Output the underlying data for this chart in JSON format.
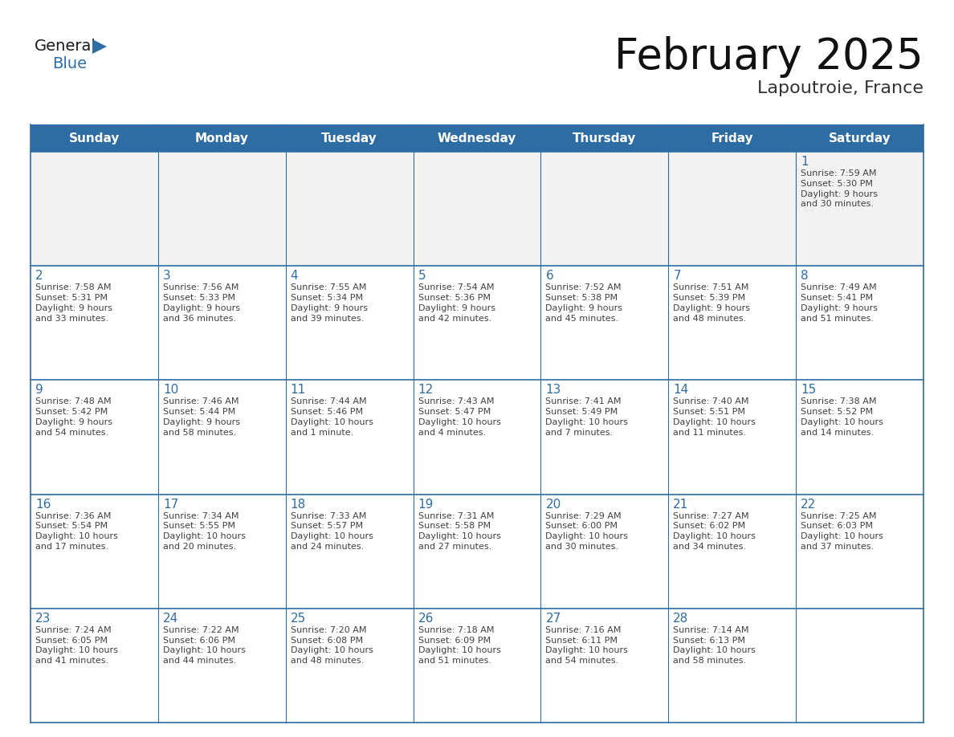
{
  "title": "February 2025",
  "subtitle": "Lapoutroie, France",
  "header_color": "#2e6da4",
  "header_text_color": "#ffffff",
  "cell_bg_color": "#ffffff",
  "cell_bg_light": "#f2f2f2",
  "cell_border_color": "#2e6da4",
  "day_number_color": "#2e6da4",
  "cell_text_color": "#404040",
  "days_of_week": [
    "Sunday",
    "Monday",
    "Tuesday",
    "Wednesday",
    "Thursday",
    "Friday",
    "Saturday"
  ],
  "weeks": [
    [
      {
        "day": null,
        "text": ""
      },
      {
        "day": null,
        "text": ""
      },
      {
        "day": null,
        "text": ""
      },
      {
        "day": null,
        "text": ""
      },
      {
        "day": null,
        "text": ""
      },
      {
        "day": null,
        "text": ""
      },
      {
        "day": 1,
        "text": "Sunrise: 7:59 AM\nSunset: 5:30 PM\nDaylight: 9 hours\nand 30 minutes."
      }
    ],
    [
      {
        "day": 2,
        "text": "Sunrise: 7:58 AM\nSunset: 5:31 PM\nDaylight: 9 hours\nand 33 minutes."
      },
      {
        "day": 3,
        "text": "Sunrise: 7:56 AM\nSunset: 5:33 PM\nDaylight: 9 hours\nand 36 minutes."
      },
      {
        "day": 4,
        "text": "Sunrise: 7:55 AM\nSunset: 5:34 PM\nDaylight: 9 hours\nand 39 minutes."
      },
      {
        "day": 5,
        "text": "Sunrise: 7:54 AM\nSunset: 5:36 PM\nDaylight: 9 hours\nand 42 minutes."
      },
      {
        "day": 6,
        "text": "Sunrise: 7:52 AM\nSunset: 5:38 PM\nDaylight: 9 hours\nand 45 minutes."
      },
      {
        "day": 7,
        "text": "Sunrise: 7:51 AM\nSunset: 5:39 PM\nDaylight: 9 hours\nand 48 minutes."
      },
      {
        "day": 8,
        "text": "Sunrise: 7:49 AM\nSunset: 5:41 PM\nDaylight: 9 hours\nand 51 minutes."
      }
    ],
    [
      {
        "day": 9,
        "text": "Sunrise: 7:48 AM\nSunset: 5:42 PM\nDaylight: 9 hours\nand 54 minutes."
      },
      {
        "day": 10,
        "text": "Sunrise: 7:46 AM\nSunset: 5:44 PM\nDaylight: 9 hours\nand 58 minutes."
      },
      {
        "day": 11,
        "text": "Sunrise: 7:44 AM\nSunset: 5:46 PM\nDaylight: 10 hours\nand 1 minute."
      },
      {
        "day": 12,
        "text": "Sunrise: 7:43 AM\nSunset: 5:47 PM\nDaylight: 10 hours\nand 4 minutes."
      },
      {
        "day": 13,
        "text": "Sunrise: 7:41 AM\nSunset: 5:49 PM\nDaylight: 10 hours\nand 7 minutes."
      },
      {
        "day": 14,
        "text": "Sunrise: 7:40 AM\nSunset: 5:51 PM\nDaylight: 10 hours\nand 11 minutes."
      },
      {
        "day": 15,
        "text": "Sunrise: 7:38 AM\nSunset: 5:52 PM\nDaylight: 10 hours\nand 14 minutes."
      }
    ],
    [
      {
        "day": 16,
        "text": "Sunrise: 7:36 AM\nSunset: 5:54 PM\nDaylight: 10 hours\nand 17 minutes."
      },
      {
        "day": 17,
        "text": "Sunrise: 7:34 AM\nSunset: 5:55 PM\nDaylight: 10 hours\nand 20 minutes."
      },
      {
        "day": 18,
        "text": "Sunrise: 7:33 AM\nSunset: 5:57 PM\nDaylight: 10 hours\nand 24 minutes."
      },
      {
        "day": 19,
        "text": "Sunrise: 7:31 AM\nSunset: 5:58 PM\nDaylight: 10 hours\nand 27 minutes."
      },
      {
        "day": 20,
        "text": "Sunrise: 7:29 AM\nSunset: 6:00 PM\nDaylight: 10 hours\nand 30 minutes."
      },
      {
        "day": 21,
        "text": "Sunrise: 7:27 AM\nSunset: 6:02 PM\nDaylight: 10 hours\nand 34 minutes."
      },
      {
        "day": 22,
        "text": "Sunrise: 7:25 AM\nSunset: 6:03 PM\nDaylight: 10 hours\nand 37 minutes."
      }
    ],
    [
      {
        "day": 23,
        "text": "Sunrise: 7:24 AM\nSunset: 6:05 PM\nDaylight: 10 hours\nand 41 minutes."
      },
      {
        "day": 24,
        "text": "Sunrise: 7:22 AM\nSunset: 6:06 PM\nDaylight: 10 hours\nand 44 minutes."
      },
      {
        "day": 25,
        "text": "Sunrise: 7:20 AM\nSunset: 6:08 PM\nDaylight: 10 hours\nand 48 minutes."
      },
      {
        "day": 26,
        "text": "Sunrise: 7:18 AM\nSunset: 6:09 PM\nDaylight: 10 hours\nand 51 minutes."
      },
      {
        "day": 27,
        "text": "Sunrise: 7:16 AM\nSunset: 6:11 PM\nDaylight: 10 hours\nand 54 minutes."
      },
      {
        "day": 28,
        "text": "Sunrise: 7:14 AM\nSunset: 6:13 PM\nDaylight: 10 hours\nand 58 minutes."
      },
      {
        "day": null,
        "text": ""
      }
    ]
  ],
  "logo_text_general": "General",
  "logo_text_blue": "Blue",
  "logo_color_general": "#1a1a1a",
  "logo_color_blue": "#2e6da4",
  "logo_triangle_color": "#2e6da4",
  "fig_width": 11.88,
  "fig_height": 9.18,
  "dpi": 100
}
